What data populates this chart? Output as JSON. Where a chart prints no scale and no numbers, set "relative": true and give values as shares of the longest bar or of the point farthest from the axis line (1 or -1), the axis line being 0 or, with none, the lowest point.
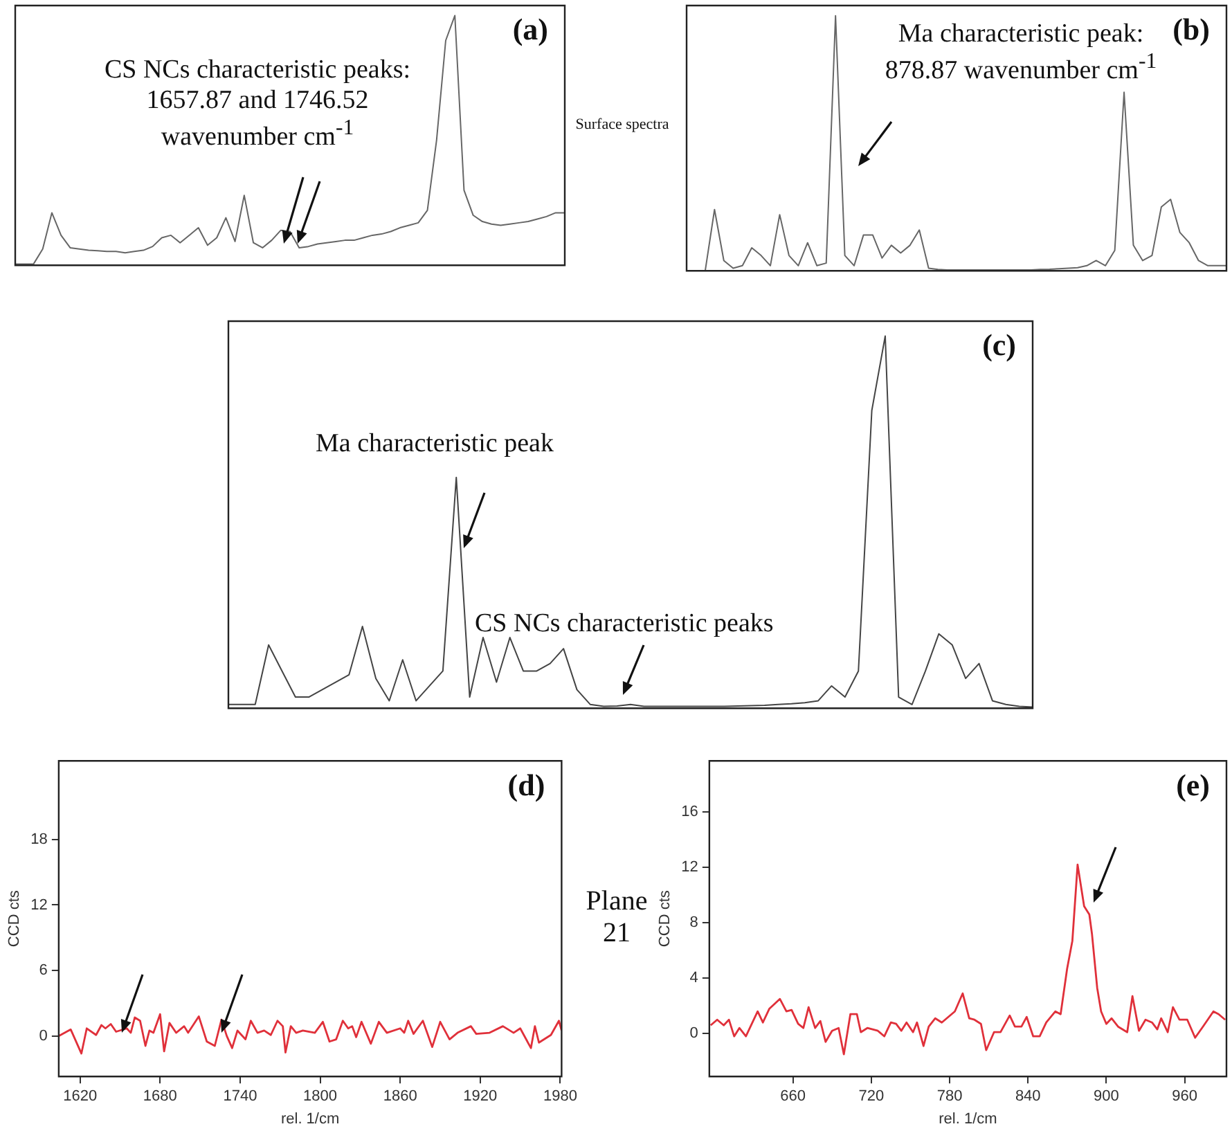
{
  "chart_data": [
    {
      "type": "line",
      "title": "(a)",
      "color": "#666666",
      "relative": true,
      "categories": [
        null,
        null,
        null,
        null,
        null,
        null,
        null,
        null,
        null,
        null,
        null,
        null,
        null,
        null,
        null,
        null,
        null,
        null,
        null,
        null,
        null,
        null,
        null,
        null,
        null,
        null,
        null,
        null,
        null,
        null,
        null,
        null,
        null,
        null,
        null,
        null,
        null,
        null,
        null,
        null,
        null,
        null,
        null,
        null,
        null,
        null,
        null,
        null,
        null,
        null,
        null,
        null,
        null,
        null,
        null,
        null,
        null,
        null,
        null,
        null,
        null
      ],
      "values": [
        0.005,
        0.005,
        0.005,
        0.065,
        0.21,
        0.12,
        0.07,
        0.065,
        0.06,
        0.058,
        0.055,
        0.055,
        0.05,
        0.055,
        0.06,
        0.075,
        0.11,
        0.12,
        0.09,
        0.12,
        0.15,
        0.08,
        0.11,
        0.19,
        0.095,
        0.28,
        0.09,
        0.07,
        0.1,
        0.14,
        0.135,
        0.07,
        0.075,
        0.085,
        0.09,
        0.095,
        0.1,
        0.1,
        0.11,
        0.12,
        0.125,
        0.135,
        0.15,
        0.16,
        0.17,
        0.22,
        0.5,
        0.9,
        1,
        0.3,
        0.2,
        0.175,
        0.165,
        0.16,
        0.165,
        0.17,
        0.175,
        0.185,
        0.195,
        0.21,
        0.21
      ],
      "annotations": [
        "CS NCs characteristic peaks: 1657.87 and 1746.52 wavenumber cm$^{-1}$"
      ]
    },
    {
      "type": "line",
      "title": "(b)",
      "color": "#666666",
      "relative": true,
      "categories": [
        null,
        null,
        null,
        null,
        null,
        null,
        null,
        null,
        null,
        null,
        null,
        null,
        null,
        null,
        null,
        null,
        null,
        null,
        null,
        null,
        null,
        null,
        null,
        null,
        null,
        null,
        null,
        null,
        null,
        null,
        null,
        null,
        null,
        null,
        null,
        null,
        null,
        null,
        null,
        null,
        null,
        null,
        null,
        null,
        null,
        null,
        null,
        null,
        null,
        null,
        null,
        null,
        null,
        null,
        null,
        null,
        null,
        null,
        null
      ],
      "values": [
        0,
        0,
        0,
        0.24,
        0.04,
        0.01,
        0.02,
        0.09,
        0.06,
        0.02,
        0.22,
        0.06,
        0.02,
        0.11,
        0.02,
        0.03,
        1,
        0.06,
        0.02,
        0.14,
        0.14,
        0.05,
        0.1,
        0.07,
        0.1,
        0.16,
        0.01,
        0.005,
        0.003,
        0.003,
        0.003,
        0.003,
        0.003,
        0.003,
        0.003,
        0.003,
        0.003,
        0.003,
        0.005,
        0.006,
        0.008,
        0.01,
        0.012,
        0.02,
        0.04,
        0.02,
        0.08,
        0.7,
        0.1,
        0.04,
        0.06,
        0.25,
        0.28,
        0.15,
        0.11,
        0.04,
        0.02,
        0.02,
        0.02
      ],
      "annotations": [
        "Ma characteristic peak: 878.87 wavenumber cm$^{-1}$",
        "Surface spectra"
      ]
    },
    {
      "type": "line",
      "title": "(c)",
      "color": "#444444",
      "relative": true,
      "categories": [
        null,
        null,
        null,
        null,
        null,
        null,
        null,
        null,
        null,
        null,
        null,
        null,
        null,
        null,
        null,
        null,
        null,
        null,
        null,
        null,
        null,
        null,
        null,
        null,
        null,
        null,
        null,
        null,
        null,
        null,
        null,
        null,
        null,
        null,
        null,
        null,
        null,
        null,
        null,
        null,
        null,
        null,
        null,
        null,
        null,
        null,
        null,
        null,
        null,
        null,
        null,
        null,
        null,
        null,
        null,
        null,
        null,
        null,
        null,
        null,
        null
      ],
      "values": [
        0.01,
        0.01,
        0.01,
        0.17,
        0.1,
        0.03,
        0.03,
        0.05,
        0.07,
        0.09,
        0.22,
        0.08,
        0.02,
        0.13,
        0.02,
        0.06,
        0.1,
        0.62,
        0.03,
        0.19,
        0.07,
        0.19,
        0.1,
        0.1,
        0.12,
        0.16,
        0.05,
        0.01,
        0.005,
        0.006,
        0.01,
        0.005,
        0.005,
        0.005,
        0.005,
        0.005,
        0.005,
        0.005,
        0.006,
        0.007,
        0.008,
        0.01,
        0.012,
        0.015,
        0.02,
        0.06,
        0.03,
        0.1,
        0.8,
        1,
        0.03,
        0.01,
        0.1,
        0.2,
        0.17,
        0.08,
        0.12,
        0.02,
        0.01,
        0.005,
        0.003
      ],
      "annotations": [
        "Ma characteristic peak",
        "CS NCs characteristic peaks"
      ]
    },
    {
      "type": "line",
      "title": "(d)",
      "color": "#e0303a",
      "xlabel": "rel. 1/cm",
      "ylabel": "CCD cts",
      "xlim": [
        1604,
        1981
      ],
      "xticks": [
        1620,
        1680,
        1740,
        1800,
        1860,
        1920,
        1980
      ],
      "ylim": [
        -3.7,
        25.2
      ],
      "yticks": [
        0,
        6,
        12,
        18
      ],
      "x": [
        1604,
        1613,
        1621,
        1625,
        1632,
        1636,
        1639,
        1643,
        1647,
        1655,
        1658,
        1661,
        1665,
        1669,
        1672,
        1675,
        1680,
        1683,
        1687,
        1692,
        1698,
        1701,
        1709,
        1715,
        1721,
        1726,
        1730,
        1734,
        1738,
        1744,
        1748,
        1753,
        1758,
        1763,
        1768,
        1772,
        1774,
        1778,
        1782,
        1787,
        1796,
        1802,
        1807,
        1812,
        1817,
        1821,
        1824,
        1827,
        1831,
        1838,
        1844,
        1850,
        1860,
        1863,
        1866,
        1870,
        1877,
        1884,
        1890,
        1897,
        1903,
        1913,
        1917,
        1927,
        1937,
        1945,
        1950,
        1958,
        1961,
        1964,
        1973,
        1979,
        1981
      ],
      "values": [
        0,
        0.6,
        -1.6,
        0.7,
        0.1,
        1.0,
        0.7,
        1.1,
        0.4,
        0.7,
        0.3,
        1.7,
        1.4,
        -0.9,
        0.5,
        0.3,
        2.0,
        -1.4,
        1.2,
        0.3,
        0.9,
        0.3,
        1.8,
        -0.5,
        -0.9,
        1.5,
        0,
        -1.1,
        0.5,
        -0.3,
        1.4,
        0.3,
        0.5,
        0.1,
        1.4,
        0.9,
        -1.5,
        0.9,
        0.3,
        0.5,
        0.3,
        1.3,
        -0.5,
        -0.3,
        1.4,
        0.7,
        0.9,
        -0.1,
        1.3,
        -0.7,
        1.3,
        0.3,
        0.7,
        0.3,
        1.4,
        0.2,
        1.4,
        -1.0,
        1.3,
        -0.3,
        0.3,
        0.9,
        0.2,
        0.3,
        0.9,
        0.3,
        0.7,
        -1.1,
        0.9,
        -0.6,
        0.1,
        1.4,
        0.5
      ]
    },
    {
      "type": "line",
      "title": "(e)",
      "color": "#e0303a",
      "xlabel": "rel. 1/cm",
      "ylabel": "CCD cts",
      "xlim": [
        596,
        992
      ],
      "xticks": [
        660,
        720,
        780,
        840,
        900,
        960
      ],
      "ylim": [
        -3.1,
        19.7
      ],
      "yticks": [
        0,
        4,
        8,
        12,
        16
      ],
      "x": [
        597,
        602,
        607,
        611,
        615,
        619,
        624,
        633,
        637,
        642,
        650,
        655,
        659,
        664,
        668,
        672,
        677,
        681,
        685,
        690,
        695,
        699,
        704,
        709,
        712,
        717,
        725,
        730,
        735,
        739,
        743,
        747,
        752,
        755,
        760,
        764,
        769,
        774,
        784,
        790,
        795,
        799,
        804,
        808,
        814,
        819,
        826,
        830,
        835,
        839,
        844,
        849,
        854,
        861,
        865,
        870,
        874,
        878,
        883,
        887,
        889,
        893,
        896,
        900,
        904,
        909,
        916,
        920,
        925,
        930,
        935,
        939,
        942,
        947,
        951,
        956,
        962,
        968,
        974,
        982,
        986,
        991
      ],
      "values": [
        0.6,
        1.0,
        0.6,
        1.0,
        -0.2,
        0.4,
        -0.2,
        1.6,
        0.8,
        1.8,
        2.5,
        1.6,
        1.7,
        0.7,
        0.4,
        1.9,
        0.4,
        0.9,
        -0.6,
        0.2,
        0.4,
        -1.5,
        1.4,
        1.4,
        0.1,
        0.4,
        0.2,
        -0.2,
        0.8,
        0.7,
        0.2,
        0.8,
        0.1,
        0.8,
        -0.9,
        0.5,
        1.1,
        0.8,
        1.6,
        2.9,
        1.1,
        1.0,
        0.7,
        -1.2,
        0.1,
        0.1,
        1.3,
        0.5,
        0.5,
        1.2,
        -0.2,
        -0.2,
        0.8,
        1.6,
        1.4,
        4.7,
        6.7,
        12.2,
        9.2,
        8.6,
        7.2,
        3.3,
        1.6,
        0.7,
        1.1,
        0.5,
        0.1,
        2.7,
        0.2,
        1.0,
        0.8,
        0.3,
        1.1,
        0.1,
        1.9,
        1.0,
        1.0,
        -0.3,
        0.5,
        1.6,
        1.4,
        1.0
      ],
      "annotations": [
        "Plane 21"
      ]
    }
  ]
}
